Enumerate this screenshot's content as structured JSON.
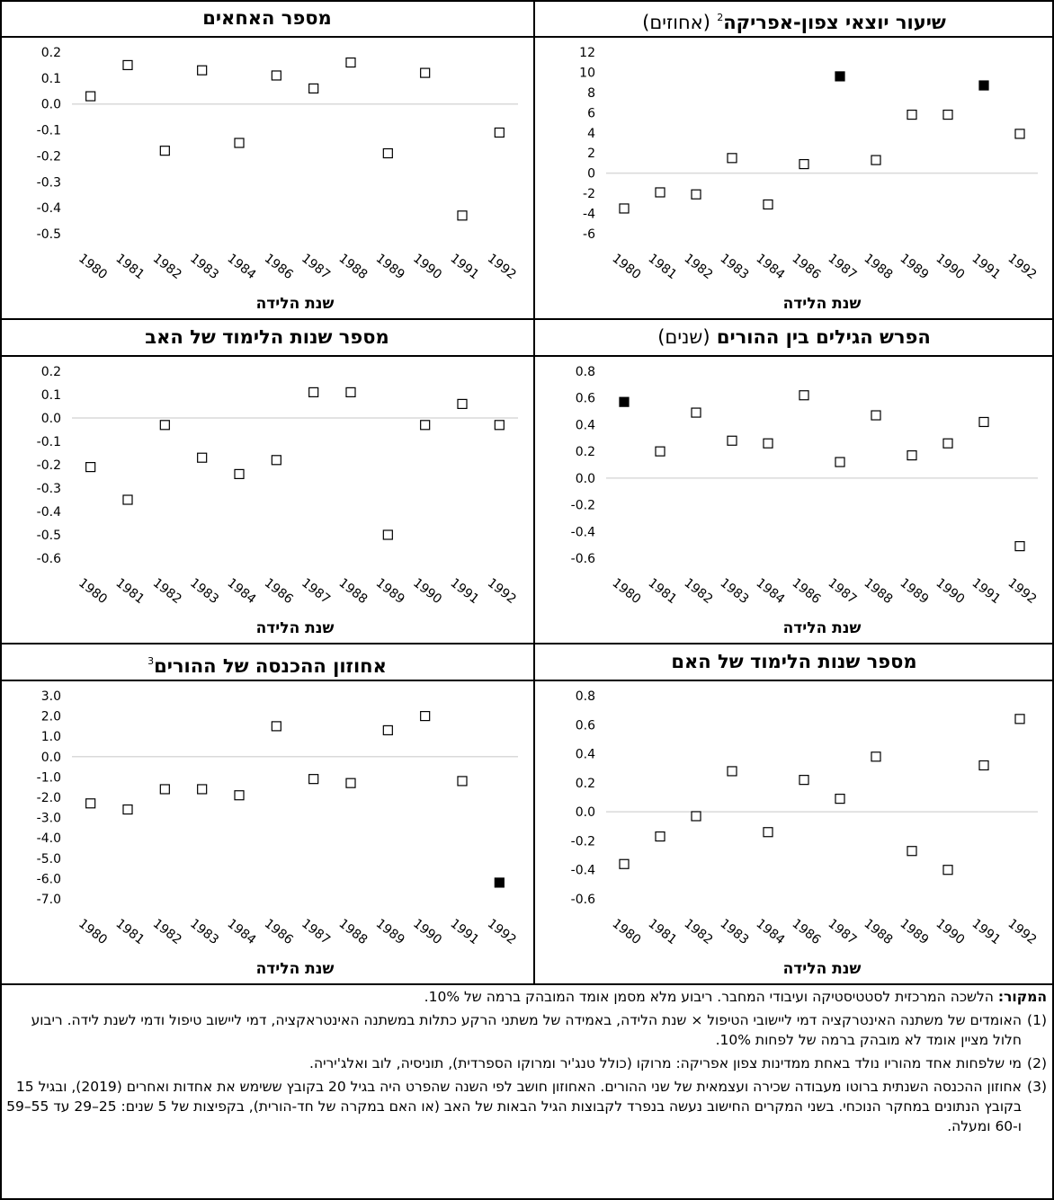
{
  "x_axis_label": "שנת הלידה",
  "panels": [
    {
      "id": "north_africa",
      "title_bold": "שיעור יוצאי צפון-אפריקה",
      "title_sup": "2",
      "title_note": "(אחוזים)"
    },
    {
      "id": "siblings",
      "title_bold": "מספר האחאים",
      "title_sup": "",
      "title_note": ""
    },
    {
      "id": "age_gap",
      "title_bold": "הפרש הגילים בין ההורים",
      "title_sup": "",
      "title_note": "(שנים)"
    },
    {
      "id": "father_edu",
      "title_bold": "מספר שנות הלימוד של האב",
      "title_sup": "",
      "title_note": ""
    },
    {
      "id": "mother_edu",
      "title_bold": "מספר שנות הלימוד של האם",
      "title_sup": "",
      "title_note": ""
    },
    {
      "id": "income_pct",
      "title_bold": "אחוזון ההכנסה של ההורים",
      "title_sup": "3",
      "title_note": ""
    }
  ],
  "chart_data": [
    {
      "type": "scatter",
      "id": "north_africa",
      "title": "שיעור יוצאי צפון-אפריקה (אחוזים)",
      "xlabel": "שנת הלידה",
      "categories": [
        "1980",
        "1981",
        "1982",
        "1983",
        "1984",
        "1986",
        "1987",
        "1988",
        "1989",
        "1990",
        "1991",
        "1992"
      ],
      "values": [
        -3.5,
        -1.9,
        -2.1,
        1.5,
        -3.1,
        0.9,
        9.6,
        1.3,
        5.8,
        5.8,
        8.7,
        3.9
      ],
      "significant": [
        false,
        false,
        false,
        false,
        false,
        false,
        true,
        false,
        false,
        false,
        true,
        false
      ],
      "yticks": [
        -6,
        -4,
        -2,
        0,
        2,
        4,
        6,
        8,
        10,
        12
      ],
      "ytick_labels": [
        "-6",
        "-4",
        "-2",
        "0",
        "2",
        "4",
        "6",
        "8",
        "10",
        "12"
      ],
      "ylim": [
        -6,
        12
      ],
      "grid": "zero line"
    },
    {
      "type": "scatter",
      "id": "siblings",
      "title": "מספר האחאים",
      "xlabel": "שנת הלידה",
      "categories": [
        "1980",
        "1981",
        "1982",
        "1983",
        "1984",
        "1986",
        "1987",
        "1988",
        "1989",
        "1990",
        "1991",
        "1992"
      ],
      "values": [
        0.03,
        0.15,
        -0.18,
        0.13,
        -0.15,
        0.11,
        0.06,
        0.16,
        -0.19,
        0.12,
        -0.43,
        -0.11
      ],
      "significant": [
        false,
        false,
        false,
        false,
        false,
        false,
        false,
        false,
        false,
        false,
        false,
        false
      ],
      "yticks": [
        -0.5,
        -0.4,
        -0.3,
        -0.2,
        -0.1,
        0,
        0.1,
        0.2
      ],
      "ytick_labels": [
        "-0.5",
        "-0.4",
        "-0.3",
        "-0.2",
        "-0.1",
        "0.0",
        "0.1",
        "0.2"
      ],
      "ylim": [
        -0.5,
        0.2
      ],
      "grid": "zero line"
    },
    {
      "type": "scatter",
      "id": "age_gap",
      "title": "הפרש הגילים בין ההורים (שנים)",
      "xlabel": "שנת הלידה",
      "categories": [
        "1980",
        "1981",
        "1982",
        "1983",
        "1984",
        "1986",
        "1987",
        "1988",
        "1989",
        "1990",
        "1991",
        "1992"
      ],
      "values": [
        0.57,
        0.2,
        0.49,
        0.28,
        0.26,
        0.62,
        0.12,
        0.47,
        0.17,
        0.26,
        0.42,
        -0.51
      ],
      "significant": [
        true,
        false,
        false,
        false,
        false,
        false,
        false,
        false,
        false,
        false,
        false,
        false
      ],
      "yticks": [
        -0.6,
        -0.4,
        -0.2,
        0,
        0.2,
        0.4,
        0.6,
        0.8
      ],
      "ytick_labels": [
        "-0.6",
        "-0.4",
        "-0.2",
        "0.0",
        "0.2",
        "0.4",
        "0.6",
        "0.8"
      ],
      "ylim": [
        -0.6,
        0.8
      ],
      "grid": "zero line"
    },
    {
      "type": "scatter",
      "id": "father_edu",
      "title": "מספר שנות הלימוד של האב",
      "xlabel": "שנת הלידה",
      "categories": [
        "1980",
        "1981",
        "1982",
        "1983",
        "1984",
        "1986",
        "1987",
        "1988",
        "1989",
        "1990",
        "1991",
        "1992"
      ],
      "values": [
        -0.21,
        -0.35,
        -0.03,
        -0.17,
        -0.24,
        -0.18,
        0.11,
        0.11,
        -0.5,
        -0.03,
        0.06,
        -0.03
      ],
      "significant": [
        false,
        false,
        false,
        false,
        false,
        false,
        false,
        false,
        false,
        false,
        false,
        false
      ],
      "yticks": [
        -0.6,
        -0.5,
        -0.4,
        -0.3,
        -0.2,
        -0.1,
        0,
        0.1,
        0.2
      ],
      "ytick_labels": [
        "-0.6",
        "-0.5",
        "-0.4",
        "-0.3",
        "-0.2",
        "-0.1",
        "0.0",
        "0.1",
        "0.2"
      ],
      "ylim": [
        -0.6,
        0.2
      ],
      "grid": "zero line"
    },
    {
      "type": "scatter",
      "id": "mother_edu",
      "title": "מספר שנות הלימוד של האם",
      "xlabel": "שנת הלידה",
      "categories": [
        "1980",
        "1981",
        "1982",
        "1983",
        "1984",
        "1986",
        "1987",
        "1988",
        "1989",
        "1990",
        "1991",
        "1992"
      ],
      "values": [
        -0.36,
        -0.17,
        -0.03,
        0.28,
        -0.14,
        0.22,
        0.09,
        0.38,
        -0.27,
        -0.4,
        0.32,
        0.64
      ],
      "significant": [
        false,
        false,
        false,
        false,
        false,
        false,
        false,
        false,
        false,
        false,
        false,
        false
      ],
      "yticks": [
        -0.6,
        -0.4,
        -0.2,
        0,
        0.2,
        0.4,
        0.6,
        0.8
      ],
      "ytick_labels": [
        "-0.6",
        "-0.4",
        "-0.2",
        "0.0",
        "0.2",
        "0.4",
        "0.6",
        "0.8"
      ],
      "ylim": [
        -0.6,
        0.8
      ],
      "grid": "zero line"
    },
    {
      "type": "scatter",
      "id": "income_pct",
      "title": "אחוזון ההכנסה של ההורים",
      "xlabel": "שנת הלידה",
      "categories": [
        "1980",
        "1981",
        "1982",
        "1983",
        "1984",
        "1986",
        "1987",
        "1988",
        "1989",
        "1990",
        "1991",
        "1992"
      ],
      "values": [
        -2.3,
        -2.6,
        -1.6,
        -1.6,
        -1.9,
        1.5,
        -1.1,
        -1.3,
        1.3,
        2.0,
        -1.2,
        -6.2
      ],
      "significant": [
        false,
        false,
        false,
        false,
        false,
        false,
        false,
        false,
        false,
        false,
        false,
        true
      ],
      "yticks": [
        -7,
        -6,
        -5,
        -4,
        -3,
        -2,
        -1,
        0,
        1,
        2,
        3
      ],
      "ytick_labels": [
        "-7.0",
        "-6.0",
        "-5.0",
        "-4.0",
        "-3.0",
        "-2.0",
        "-1.0",
        "0.0",
        "1.0",
        "2.0",
        "3.0"
      ],
      "ylim": [
        -7,
        3
      ],
      "grid": "zero line"
    }
  ],
  "notes": {
    "source_label": "המקור:",
    "source_text": " הלשכה המרכזית לסטטיסטיקה ועיבודי המחבר. ריבוע מלא מסמן אומד המובהק ברמה של 10%.",
    "footnotes": [
      {
        "num": "(1)",
        "text": "האומדים של משתנה האינטרקציה דמי ליישובי הטיפול × שנת הלידה, באמידה של משתני הרקע כתלות במשתנה האינטראקציה, דמי ליישוב טיפול ודמי לשנת לידה. ריבוע חלול מציין אומד לא מובהק ברמה של לפחות 10%."
      },
      {
        "num": "(2)",
        "text": "מי שלפחות אחד מהוריו נולד באחת ממדינות צפון אפריקה: מרוקו (כולל טנג'יר ומרוקו הספרדית), תוניסיה, לוב ואלג'יריה."
      },
      {
        "num": "(3)",
        "text": "אחוזון ההכנסה השנתית ברוטו מעבודה שכירה ועצמאית של שני ההורים. האחוזון חושב לפי השנה שהפרט היה בגיל 20 בקובץ ששימש את אחדות ואחרים (2019), ובגיל 15 בקובץ הנתונים במחקר הנוכחי. בשני המקרים החישוב נעשה בנפרד לקבוצות הגיל הבאות של האב (או האם במקרה של חד-הורית), בקפיצות של 5 שנים: 25–29 עד 55–59 ו-60 ומעלה."
      }
    ]
  },
  "colors": {
    "marker_fill_significant": "#000000",
    "marker_fill_insignificant": "#ffffff",
    "marker_stroke": "#000000",
    "zero_line": "#d9d9d9",
    "border": "#000000"
  }
}
